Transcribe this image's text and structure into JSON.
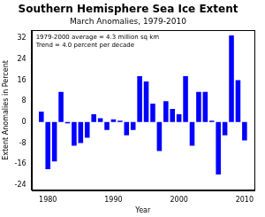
{
  "chart_data": {
    "type": "bar",
    "title": "Southern Hemisphere Sea Ice Extent",
    "subtitle": "March Anomalies, 1979-2010",
    "annotations": [
      "1979-2000 average = 4.3 million sq km",
      "Trend = 4.0 percent per decade"
    ],
    "x_label": "Year",
    "y_label": "Extent Anomalies in Percent",
    "x": [
      1979,
      1980,
      1981,
      1982,
      1983,
      1984,
      1985,
      1986,
      1987,
      1988,
      1989,
      1990,
      1991,
      1992,
      1993,
      1994,
      1995,
      1996,
      1997,
      1998,
      1999,
      2000,
      2001,
      2002,
      2003,
      2004,
      2005,
      2006,
      2007,
      2008,
      2009,
      2010
    ],
    "values": [
      4,
      -18,
      -15,
      11.5,
      -0.5,
      -9,
      -8,
      -6,
      3,
      1.5,
      -3,
      1,
      0.5,
      -5,
      -3,
      17.5,
      15.5,
      7,
      -11,
      8,
      5,
      3,
      17.5,
      -9,
      11.5,
      11.5,
      0.5,
      -20,
      -5,
      33,
      16,
      -7
    ],
    "color": "#0000ff",
    "xlim": [
      1977.5,
      2011.5
    ],
    "xticks": [
      1980,
      1990,
      2000,
      2010
    ],
    "ylim": [
      -26,
      35
    ],
    "yticks": [
      -24,
      -16,
      -8,
      0,
      8,
      16,
      24,
      32
    ],
    "grid": false
  }
}
